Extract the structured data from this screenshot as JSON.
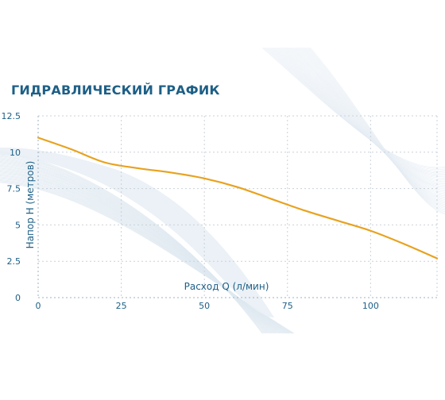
{
  "chart_data": {
    "type": "line",
    "title": "ГИДРАВЛИЧЕСКИЙ ГРАФИК",
    "xlabel": "Расход Q (л/мин)",
    "ylabel": "Напор H (метров)",
    "xlim": [
      0,
      120
    ],
    "ylim": [
      0,
      12.5
    ],
    "xticks": [
      "0",
      "25",
      "50",
      "75",
      "100"
    ],
    "xtick_values": [
      0,
      25,
      50,
      75,
      100
    ],
    "yticks": [
      "0",
      "2.5",
      "5",
      "7.5",
      "10",
      "12.5"
    ],
    "ytick_values": [
      0,
      2.5,
      5,
      7.5,
      10,
      12.5
    ],
    "grid": true,
    "series": [
      {
        "color": "#e8a21f",
        "x": [
          0,
          10,
          20,
          30,
          40,
          50,
          60,
          70,
          80,
          90,
          100,
          110,
          120
        ],
        "y": [
          11.0,
          10.2,
          9.3,
          8.9,
          8.6,
          8.2,
          7.6,
          6.8,
          6.0,
          5.3,
          4.6,
          3.7,
          2.7
        ]
      }
    ]
  }
}
